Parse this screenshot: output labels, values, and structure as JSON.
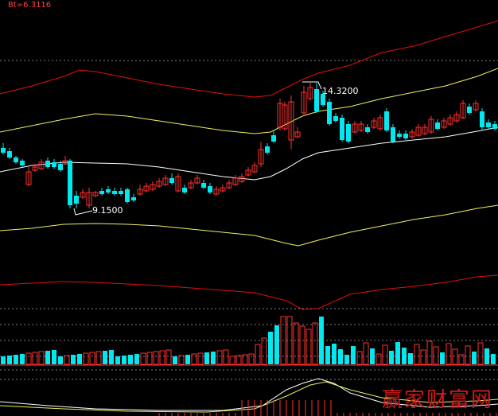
{
  "header": {
    "indicator": "Bt=6.3116"
  },
  "annotations": {
    "low": "9.1500",
    "high": "14.3200"
  },
  "watermark": "赢家财富网",
  "colors": {
    "up": "#ff3030",
    "down": "#00e8f0",
    "band_outer": "#e01010",
    "band_mid": "#f0f060",
    "ma_white": "#ffffff",
    "grid": "#808080"
  },
  "chart_data": {
    "type": "candlestick",
    "price_high": 14.32,
    "price_low": 9.15,
    "volume_bars": "up/down colored per day"
  }
}
